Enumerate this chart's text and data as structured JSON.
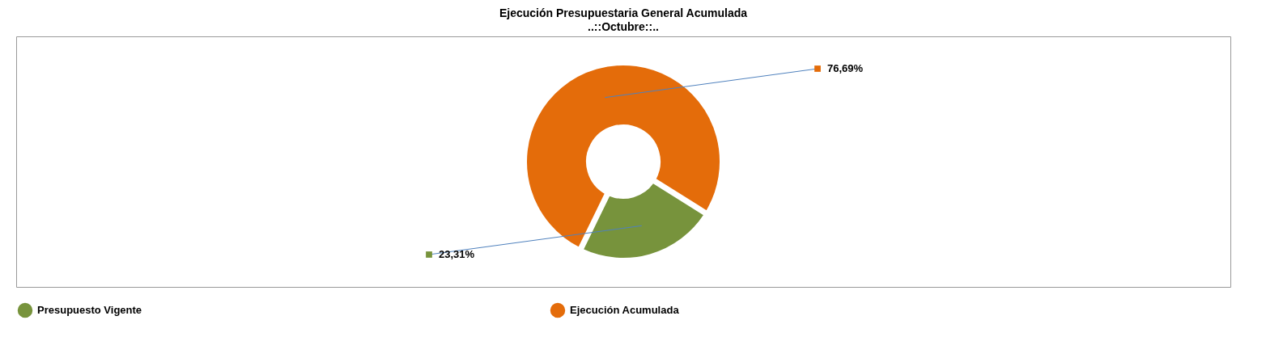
{
  "chart_data": {
    "type": "donut",
    "title": "Ejecución Presupuestaria General Acumulada",
    "subtitle": "..::Octubre::..",
    "categories": [
      "Presupuesto Vigente",
      "Ejecución Acumulada"
    ],
    "values": [
      23.31,
      76.69
    ],
    "colors": [
      "#77933c",
      "#e46c0a"
    ],
    "value_labels": [
      "23,31%",
      "76,69%"
    ],
    "legend": "bottom"
  }
}
